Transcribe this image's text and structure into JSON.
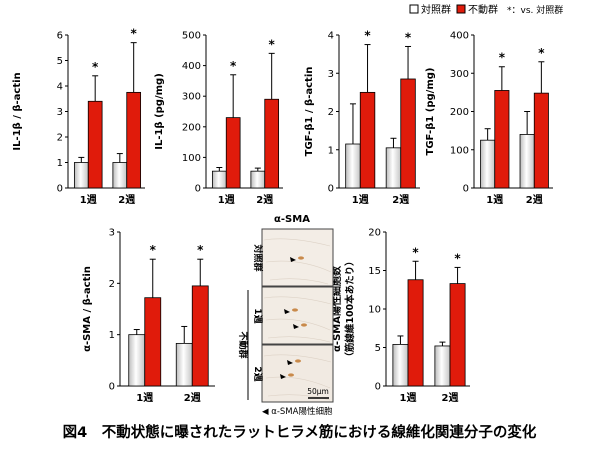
{
  "legend": {
    "control": "対照群",
    "immobilized": "不動群",
    "sig_note": "*：vs. 対照群",
    "colors": {
      "control": "#e8e8e8",
      "immobilized": "#e01b0b"
    }
  },
  "chart_data": [
    {
      "type": "bar",
      "ylabel": "IL-1β / β-actin",
      "categories": [
        "1週",
        "2週"
      ],
      "ylim": [
        0,
        6
      ],
      "yticks": [
        0,
        1,
        2,
        3,
        4,
        5,
        6
      ],
      "series": [
        {
          "name": "対照群",
          "values": [
            1.0,
            1.0
          ],
          "errors": [
            0.2,
            0.35
          ]
        },
        {
          "name": "不動群",
          "values": [
            3.4,
            3.75
          ],
          "errors": [
            1.0,
            1.95
          ]
        }
      ],
      "significance": [
        "*",
        "*"
      ]
    },
    {
      "type": "bar",
      "ylabel": "IL-1β (pg/mg)",
      "categories": [
        "1週",
        "2週"
      ],
      "ylim": [
        0,
        500
      ],
      "yticks": [
        0,
        100,
        200,
        300,
        400,
        500
      ],
      "series": [
        {
          "name": "対照群",
          "values": [
            55,
            55
          ],
          "errors": [
            12,
            10
          ]
        },
        {
          "name": "不動群",
          "values": [
            230,
            290
          ],
          "errors": [
            140,
            150
          ]
        }
      ],
      "significance": [
        "*",
        "*"
      ]
    },
    {
      "type": "bar",
      "ylabel": "TGF-β1 / β-actin",
      "categories": [
        "1週",
        "2週"
      ],
      "ylim": [
        0,
        4
      ],
      "yticks": [
        0,
        1,
        2,
        3,
        4
      ],
      "series": [
        {
          "name": "対照群",
          "values": [
            1.15,
            1.05
          ],
          "errors": [
            1.05,
            0.25
          ]
        },
        {
          "name": "不動群",
          "values": [
            2.5,
            2.85
          ],
          "errors": [
            1.25,
            0.85
          ]
        }
      ],
      "significance": [
        "*",
        "*"
      ]
    },
    {
      "type": "bar",
      "ylabel": "TGF-β1 (pg/mg)",
      "categories": [
        "1週",
        "2週"
      ],
      "ylim": [
        0,
        400
      ],
      "yticks": [
        0,
        100,
        200,
        300,
        400
      ],
      "series": [
        {
          "name": "対照群",
          "values": [
            125,
            140
          ],
          "errors": [
            30,
            60
          ]
        },
        {
          "name": "不動群",
          "values": [
            255,
            248
          ],
          "errors": [
            62,
            82
          ]
        }
      ],
      "significance": [
        "*",
        "*"
      ]
    },
    {
      "type": "bar",
      "ylabel": "α-SMA / β-actin",
      "categories": [
        "1週",
        "2週"
      ],
      "ylim": [
        0,
        3
      ],
      "yticks": [
        0,
        1,
        2,
        3
      ],
      "series": [
        {
          "name": "対照群",
          "values": [
            1.0,
            0.83
          ],
          "errors": [
            0.1,
            0.33
          ]
        },
        {
          "name": "不動群",
          "values": [
            1.72,
            1.95
          ],
          "errors": [
            0.75,
            0.52
          ]
        }
      ],
      "significance": [
        "*",
        "*"
      ]
    },
    {
      "type": "bar",
      "ylabel": "α-SMA陽性細胞数",
      "ylabel2": "（筋線維100本あたり）",
      "categories": [
        "1週",
        "2週"
      ],
      "ylim": [
        0,
        20
      ],
      "yticks": [
        0,
        5,
        10,
        15,
        20
      ],
      "series": [
        {
          "name": "対照群",
          "values": [
            5.4,
            5.2
          ],
          "errors": [
            1.1,
            0.5
          ]
        },
        {
          "name": "不動群",
          "values": [
            13.8,
            13.3
          ],
          "errors": [
            2.4,
            2.1
          ]
        }
      ],
      "significance": [
        "*",
        "*"
      ]
    }
  ],
  "micrograph": {
    "title": "α-SMA",
    "row_labels": [
      "対照群",
      "1週",
      "2週"
    ],
    "group_label": "不動群",
    "scale_bar": "50μm",
    "arrow_legend": "◀ α-SMA陽性細胞"
  },
  "caption": "図4　不動状態に曝されたラットヒラメ筋における線維化関連分子の変化"
}
